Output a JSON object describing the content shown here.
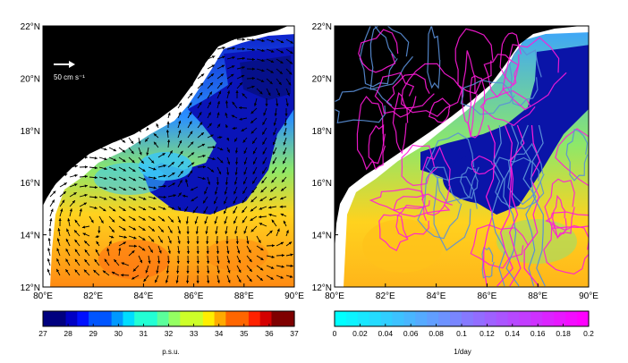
{
  "chart_data": [
    {
      "type": "heatmap",
      "description_variable": "salinity",
      "x_ticks": [
        "80°E",
        "82°E",
        "84°E",
        "86°E",
        "88°E",
        "90°E"
      ],
      "y_ticks": [
        "12°N",
        "14°N",
        "16°N",
        "18°N",
        "20°N",
        "22°N"
      ],
      "xlim": [
        80,
        90
      ],
      "ylim": [
        12,
        22
      ],
      "colorbar": {
        "ticks": [
          "27",
          "28",
          "29",
          "30",
          "31",
          "32",
          "33",
          "34",
          "35",
          "36",
          "37"
        ],
        "range": [
          27,
          37
        ],
        "unit": "p.s.u.",
        "colormap": "jet"
      },
      "vector_scale_label": "50 cm s⁻¹",
      "overlay": "current vectors"
    },
    {
      "type": "heatmap",
      "x_ticks": [
        "80°E",
        "82°E",
        "84°E",
        "86°E",
        "88°E",
        "90°E"
      ],
      "y_ticks": [
        "12°N",
        "14°N",
        "16°N",
        "18°N",
        "20°N",
        "22°N"
      ],
      "xlim": [
        80,
        90
      ],
      "ylim": [
        12,
        22
      ],
      "colorbar": {
        "ticks": [
          "0",
          "0.02",
          "0.04",
          "0.06",
          "0.08",
          "0.1",
          "0.12",
          "0.14",
          "0.16",
          "0.18",
          "0.2"
        ],
        "range": [
          0,
          0.2
        ],
        "unit": "1/day",
        "colormap": "cool"
      },
      "overlay": "contour lines"
    }
  ],
  "colors": {
    "land": "#000000",
    "coast_mask": "#ffffff",
    "vectors": "#000000",
    "contour_magenta": "#ff1ad9",
    "contour_blue": "#5a8fd8"
  }
}
